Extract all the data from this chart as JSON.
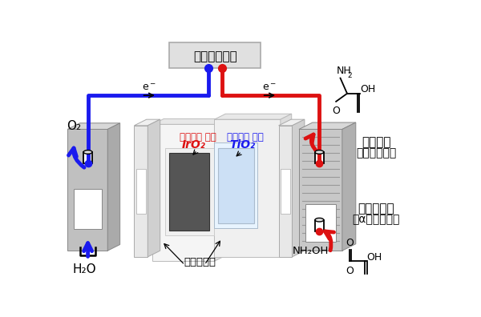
{
  "bg_color": "#ffffff",
  "device_label": "電気化学装置",
  "anode_label1": "アノード 触媒",
  "anode_label2": "IrO₂",
  "cathode_label1": "カソード 触媒",
  "cathode_label2": "TiO₂",
  "gasket_label": "ガスケット",
  "o2_label": "O₂",
  "h2o_label": "H₂O",
  "alanine_label1": "アラニン",
  "alanine_label2": "（アミノ酸）",
  "pyruvic_label1": "ピルビン酸",
  "pyruvic_label2": "（αーケト酸）",
  "nh2oh_label": "NH₂OH",
  "blue": "#1a1aee",
  "red": "#dd1111",
  "wire_lw": 3.5,
  "arrow_lw": 3.5
}
